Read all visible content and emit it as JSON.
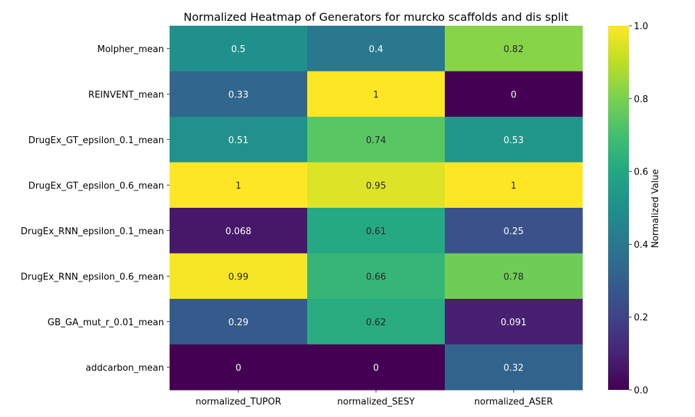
{
  "chart_data": {
    "type": "heatmap",
    "title": "Normalized Heatmap of Generators for murcko scaffolds and dis split",
    "columns": [
      "normalized_TUPOR",
      "normalized_SESY",
      "normalized_ASER"
    ],
    "rows": [
      "Molpher_mean",
      "REINVENT_mean",
      "DrugEx_GT_epsilon_0.1_mean",
      "DrugEx_GT_epsilon_0.6_mean",
      "DrugEx_RNN_epsilon_0.1_mean",
      "DrugEx_RNN_epsilon_0.6_mean",
      "GB_GA_mut_r_0.01_mean",
      "addcarbon_mean"
    ],
    "values": [
      [
        0.5,
        0.4,
        0.82
      ],
      [
        0.33,
        1,
        0
      ],
      [
        0.51,
        0.74,
        0.53
      ],
      [
        1,
        0.95,
        1
      ],
      [
        0.068,
        0.61,
        0.25
      ],
      [
        0.99,
        0.66,
        0.78
      ],
      [
        0.29,
        0.62,
        0.091
      ],
      [
        0,
        0,
        0.32
      ]
    ],
    "labels": [
      [
        "0.5",
        "0.4",
        "0.82"
      ],
      [
        "0.33",
        "1",
        "0"
      ],
      [
        "0.51",
        "0.74",
        "0.53"
      ],
      [
        "1",
        "0.95",
        "1"
      ],
      [
        "0.068",
        "0.61",
        "0.25"
      ],
      [
        "0.99",
        "0.66",
        "0.78"
      ],
      [
        "0.29",
        "0.62",
        "0.091"
      ],
      [
        "0",
        "0",
        "0.32"
      ]
    ],
    "colormap": "viridis",
    "vmin": 0,
    "vmax": 1,
    "colorbar": {
      "label": "Normalized Value",
      "ticks": [
        "0.0",
        "0.2",
        "0.4",
        "0.6",
        "0.8",
        "1.0"
      ],
      "tick_values": [
        0,
        0.2,
        0.4,
        0.6,
        0.8,
        1.0
      ]
    }
  }
}
